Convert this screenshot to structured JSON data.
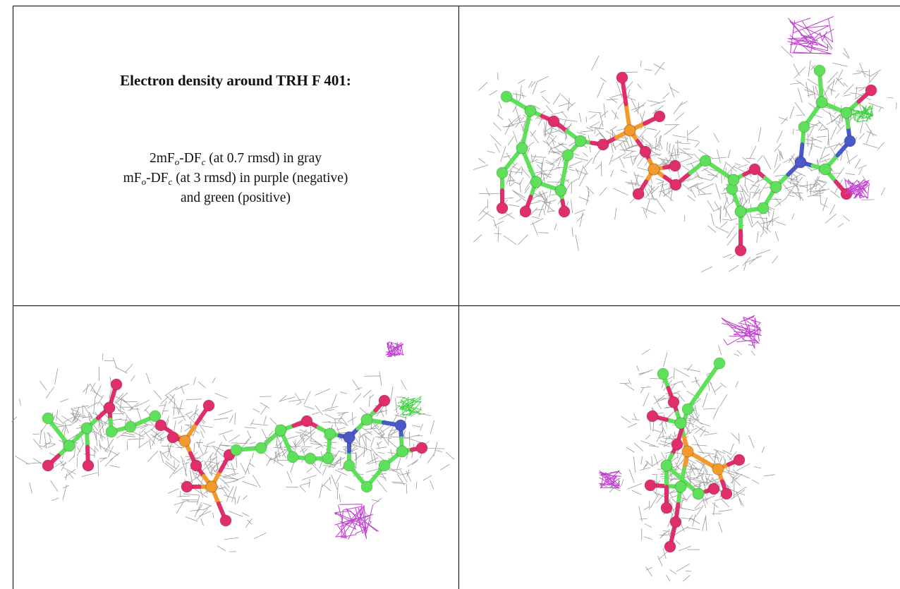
{
  "description": {
    "title": "Electron density around TRH F 401:",
    "lines": [
      [
        "2mF",
        "o",
        "-DF",
        "c",
        " (at 0.7 rmsd) in gray"
      ],
      [
        "mF",
        "o",
        "-DF",
        "c",
        " (at 3 rmsd) in purple (negative)"
      ],
      [
        "and green (positive)"
      ]
    ]
  }
}
